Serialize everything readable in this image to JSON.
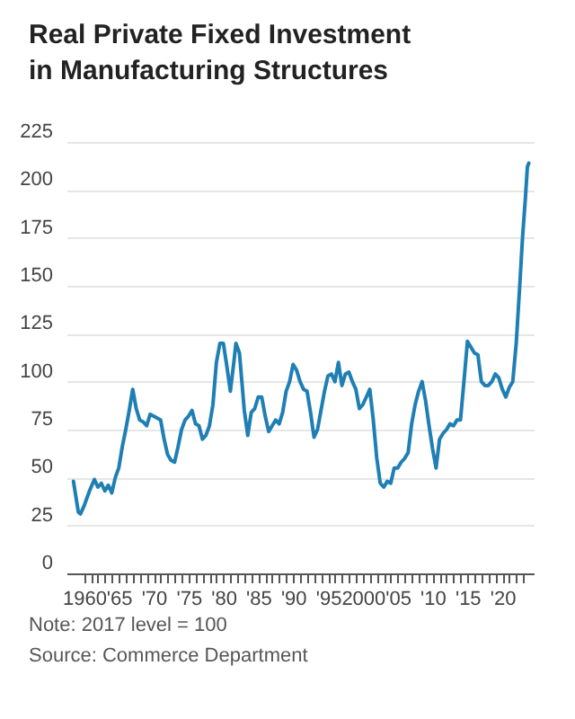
{
  "chart_data": {
    "type": "line",
    "title": "Real Private Fixed Investment in Manufacturing Structures",
    "annotations": [
      "Note: 2017 level = 100",
      "Source: Commerce Department"
    ],
    "x": [
      1958.5,
      1959.2,
      1959.5,
      1960,
      1960.8,
      1961.5,
      1962,
      1962.5,
      1963,
      1963.5,
      1964,
      1964.5,
      1965,
      1965.5,
      1966,
      1966.5,
      1967,
      1967.5,
      1968,
      1968.5,
      1969,
      1969.5,
      1970,
      1971,
      1971.5,
      1972,
      1972.5,
      1973,
      1973.5,
      1974,
      1974.5,
      1975,
      1975.5,
      1976,
      1976.5,
      1977,
      1977.5,
      1978,
      1978.5,
      1979,
      1979.5,
      1980,
      1980.5,
      1981,
      1981.5,
      1981.8,
      1982.3,
      1982.7,
      1983,
      1983.5,
      1984,
      1984.5,
      1985,
      1985.5,
      1986,
      1986.5,
      1987,
      1987.5,
      1988,
      1988.5,
      1989,
      1989.5,
      1990,
      1990.5,
      1991,
      1991.5,
      1992,
      1992.5,
      1993,
      1993.5,
      1994,
      1994.5,
      1995,
      1995.5,
      1996,
      1996.5,
      1997,
      1997.5,
      1998,
      1998.5,
      1999,
      1999.5,
      2000,
      2000.5,
      2001,
      2001.5,
      2002,
      2002.5,
      2003,
      2003.5,
      2004,
      2004.5,
      2005,
      2005.5,
      2006,
      2006.5,
      2007,
      2007.5,
      2008,
      2008.5,
      2009,
      2009.5,
      2010,
      2010.5,
      2011,
      2011.5,
      2012,
      2012.5,
      2013,
      2013.5,
      2014,
      2014.5,
      2015,
      2015.5,
      2016,
      2016.5,
      2017,
      2017.5,
      2018,
      2018.5,
      2019,
      2019.5,
      2020,
      2020.5,
      2021,
      2021.5,
      2022,
      2022.5,
      2022.9,
      2023.3,
      2023.6,
      2023.8
    ],
    "series": [
      {
        "color": "#1f7fb4",
        "values": [
          48,
          32,
          31,
          35,
          43,
          49,
          45,
          47,
          43,
          46,
          42,
          50,
          55,
          66,
          75,
          85,
          96,
          86,
          80,
          79,
          77,
          83,
          82,
          80,
          70,
          62,
          59,
          58,
          66,
          75,
          80,
          82,
          85,
          78,
          77,
          70,
          72,
          77,
          88,
          110,
          120,
          120,
          108,
          95,
          110,
          120,
          115,
          98,
          85,
          72,
          84,
          86,
          92,
          92,
          82,
          74,
          77,
          80,
          78,
          84,
          95,
          100,
          109,
          106,
          100,
          96,
          95,
          84,
          71,
          75,
          85,
          95,
          103,
          104,
          100,
          110,
          98,
          104,
          105,
          100,
          96,
          86,
          88,
          92,
          96,
          80,
          60,
          47,
          45,
          48,
          47,
          55,
          55,
          58,
          60,
          63,
          78,
          88,
          95,
          100,
          90,
          77,
          65,
          55,
          70,
          73,
          75,
          78,
          77,
          80,
          80,
          100,
          121,
          118,
          115,
          114,
          100,
          98,
          98,
          100,
          104,
          102,
          96,
          92,
          97,
          100,
          120,
          150,
          175,
          195,
          212,
          214
        ]
      }
    ],
    "xlim": [
      1957.5,
      2024.5
    ],
    "ylim": [
      0,
      225
    ],
    "xticks": [
      {
        "value": 1960,
        "label": "1960"
      },
      {
        "value": 1961,
        "label": null
      },
      {
        "value": 1962,
        "label": null
      },
      {
        "value": 1963,
        "label": null
      },
      {
        "value": 1964,
        "label": null
      },
      {
        "value": 1965,
        "label": "'65"
      },
      {
        "value": 1966,
        "label": null
      },
      {
        "value": 1967,
        "label": null
      },
      {
        "value": 1968,
        "label": null
      },
      {
        "value": 1969,
        "label": null
      },
      {
        "value": 1970,
        "label": "'70"
      },
      {
        "value": 1971,
        "label": null
      },
      {
        "value": 1972,
        "label": null
      },
      {
        "value": 1973,
        "label": null
      },
      {
        "value": 1974,
        "label": null
      },
      {
        "value": 1975,
        "label": "'75"
      },
      {
        "value": 1976,
        "label": null
      },
      {
        "value": 1977,
        "label": null
      },
      {
        "value": 1978,
        "label": null
      },
      {
        "value": 1979,
        "label": null
      },
      {
        "value": 1980,
        "label": "'80"
      },
      {
        "value": 1981,
        "label": null
      },
      {
        "value": 1982,
        "label": null
      },
      {
        "value": 1983,
        "label": null
      },
      {
        "value": 1984,
        "label": null
      },
      {
        "value": 1985,
        "label": "'85"
      },
      {
        "value": 1986,
        "label": null
      },
      {
        "value": 1987,
        "label": null
      },
      {
        "value": 1988,
        "label": null
      },
      {
        "value": 1989,
        "label": null
      },
      {
        "value": 1990,
        "label": "'90"
      },
      {
        "value": 1991,
        "label": null
      },
      {
        "value": 1992,
        "label": null
      },
      {
        "value": 1993,
        "label": null
      },
      {
        "value": 1994,
        "label": null
      },
      {
        "value": 1995,
        "label": "'95"
      },
      {
        "value": 1996,
        "label": null
      },
      {
        "value": 1997,
        "label": null
      },
      {
        "value": 1998,
        "label": null
      },
      {
        "value": 1999,
        "label": null
      },
      {
        "value": 2000,
        "label": "2000"
      },
      {
        "value": 2001,
        "label": null
      },
      {
        "value": 2002,
        "label": null
      },
      {
        "value": 2003,
        "label": null
      },
      {
        "value": 2004,
        "label": null
      },
      {
        "value": 2005,
        "label": "'05"
      },
      {
        "value": 2006,
        "label": null
      },
      {
        "value": 2007,
        "label": null
      },
      {
        "value": 2008,
        "label": null
      },
      {
        "value": 2009,
        "label": null
      },
      {
        "value": 2010,
        "label": "'10"
      },
      {
        "value": 2011,
        "label": null
      },
      {
        "value": 2012,
        "label": null
      },
      {
        "value": 2013,
        "label": null
      },
      {
        "value": 2014,
        "label": null
      },
      {
        "value": 2015,
        "label": "'15"
      },
      {
        "value": 2016,
        "label": null
      },
      {
        "value": 2017,
        "label": null
      },
      {
        "value": 2018,
        "label": null
      },
      {
        "value": 2019,
        "label": null
      },
      {
        "value": 2020,
        "label": "'20"
      },
      {
        "value": 2021,
        "label": null
      },
      {
        "value": 2022,
        "label": null
      },
      {
        "value": 2023,
        "label": null
      }
    ],
    "yticks": [
      0,
      25,
      50,
      75,
      100,
      125,
      150,
      175,
      200,
      225
    ],
    "grid": "y"
  }
}
